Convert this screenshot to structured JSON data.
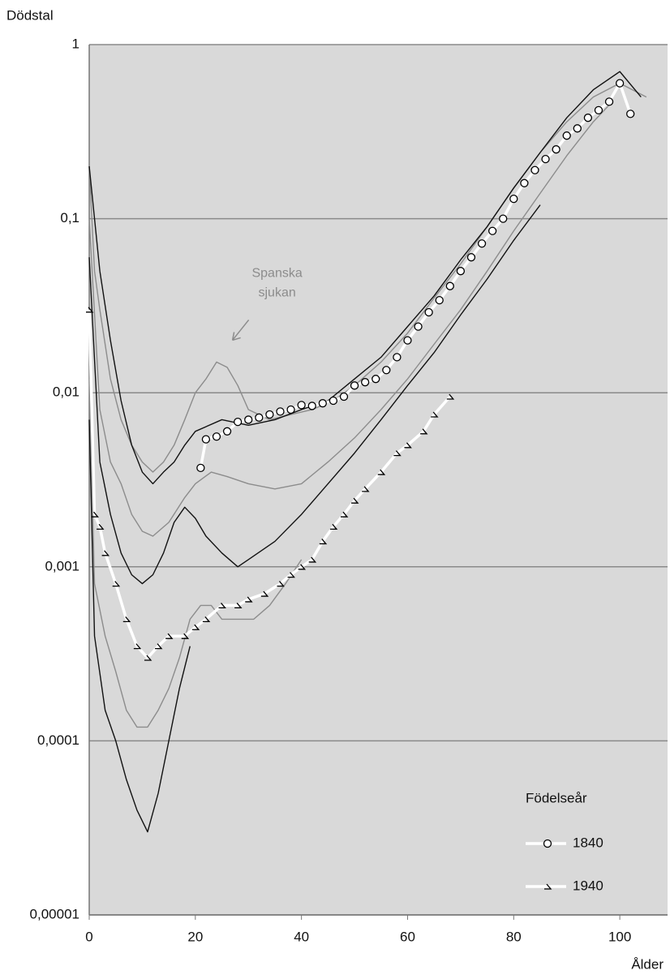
{
  "chart_data": {
    "type": "line",
    "y_label": "Dödstal",
    "x_label": "Ålder",
    "annotation": {
      "text": [
        "Spanska",
        "sjukan"
      ],
      "x": 27,
      "y": 0.018
    },
    "legend_title": "Födelseår",
    "legend": "lower right",
    "log_y": true,
    "grid": true,
    "background": "#d9d9d9",
    "xlim": [
      0,
      109
    ],
    "xticks": [
      0,
      20,
      40,
      60,
      80,
      100
    ],
    "ylim": [
      1e-05,
      1
    ],
    "yticks": [
      {
        "value": 1e-05,
        "label": "0,00001"
      },
      {
        "value": 0.0001,
        "label": "0,0001"
      },
      {
        "value": 0.001,
        "label": "0,001"
      },
      {
        "value": 0.01,
        "label": "0,01"
      },
      {
        "value": 0.1,
        "label": "0,1"
      },
      1
    ],
    "series": [
      {
        "color": "#8c8c8c",
        "x": [
          0,
          1,
          2,
          4,
          6,
          8,
          10,
          12,
          14,
          16,
          18,
          20,
          22,
          24,
          26,
          28,
          30,
          34,
          38,
          42,
          46,
          50,
          55,
          60,
          65,
          70,
          75,
          80,
          85,
          90,
          95,
          100,
          105
        ],
        "values": [
          0.2,
          0.05,
          0.03,
          0.012,
          0.007,
          0.005,
          0.004,
          0.0035,
          0.004,
          0.005,
          0.007,
          0.01,
          0.012,
          0.015,
          0.014,
          0.011,
          0.008,
          0.007,
          0.0075,
          0.008,
          0.009,
          0.011,
          0.015,
          0.022,
          0.035,
          0.055,
          0.09,
          0.15,
          0.24,
          0.36,
          0.5,
          0.6,
          0.5
        ]
      },
      {
        "color": "#111111",
        "x": [
          0,
          2,
          4,
          6,
          8,
          10,
          12,
          14,
          16,
          18,
          20,
          25,
          30,
          35,
          40,
          45,
          50,
          55,
          60,
          65,
          70,
          75,
          80,
          85,
          90,
          95,
          100,
          104
        ],
        "values": [
          0.2,
          0.05,
          0.02,
          0.009,
          0.005,
          0.0035,
          0.003,
          0.0035,
          0.004,
          0.005,
          0.006,
          0.007,
          0.0065,
          0.007,
          0.008,
          0.009,
          0.012,
          0.016,
          0.024,
          0.036,
          0.058,
          0.09,
          0.15,
          0.24,
          0.38,
          0.55,
          0.7,
          0.5
        ]
      },
      {
        "color": "#8c8c8c",
        "x": [
          0,
          2,
          4,
          6,
          8,
          10,
          12,
          15,
          18,
          20,
          23,
          26,
          30,
          35,
          40,
          45,
          50,
          55,
          60,
          65,
          70,
          75,
          80,
          85,
          90,
          95,
          98
        ],
        "values": [
          0.1,
          0.008,
          0.004,
          0.003,
          0.002,
          0.0016,
          0.0015,
          0.0018,
          0.0025,
          0.003,
          0.0035,
          0.0033,
          0.003,
          0.0028,
          0.003,
          0.004,
          0.0055,
          0.008,
          0.012,
          0.019,
          0.03,
          0.05,
          0.085,
          0.14,
          0.23,
          0.36,
          0.45
        ]
      },
      {
        "color": "#111111",
        "x": [
          0,
          2,
          4,
          6,
          8,
          10,
          12,
          14,
          16,
          18,
          20,
          22,
          25,
          28,
          30,
          35,
          40,
          45,
          50,
          55,
          60,
          65,
          70,
          75,
          80,
          85
        ],
        "values": [
          0.06,
          0.004,
          0.002,
          0.0012,
          0.0009,
          0.0008,
          0.0009,
          0.0012,
          0.0018,
          0.0022,
          0.0019,
          0.0015,
          0.0012,
          0.001,
          0.0011,
          0.0014,
          0.002,
          0.003,
          0.0045,
          0.007,
          0.011,
          0.017,
          0.028,
          0.045,
          0.075,
          0.12
        ]
      },
      {
        "color": "#8c8c8c",
        "x": [
          0,
          1,
          3,
          5,
          7,
          9,
          11,
          13,
          15,
          17,
          19,
          21,
          23,
          25,
          28,
          31,
          34,
          37,
          40
        ],
        "values": [
          0.012,
          0.0008,
          0.0004,
          0.00025,
          0.00015,
          0.00012,
          0.00012,
          0.00015,
          0.0002,
          0.0003,
          0.0005,
          0.0006,
          0.0006,
          0.0005,
          0.0005,
          0.0005,
          0.0006,
          0.0008,
          0.0011
        ]
      },
      {
        "color": "#111111",
        "x": [
          0,
          1,
          3,
          5,
          7,
          9,
          11,
          13,
          15,
          17,
          19
        ],
        "values": [
          0.007,
          0.0004,
          0.00015,
          0.0001,
          6e-05,
          4e-05,
          3e-05,
          5e-05,
          0.0001,
          0.0002,
          0.00035
        ]
      },
      {
        "name": "1840",
        "color": "#ffffff",
        "marker": "circle",
        "x": [
          21,
          22,
          24,
          26,
          28,
          30,
          32,
          34,
          36,
          38,
          40,
          42,
          44,
          46,
          48,
          50,
          52,
          54,
          56,
          58,
          60,
          62,
          64,
          66,
          68,
          70,
          72,
          74,
          76,
          78,
          80,
          82,
          84,
          86,
          88,
          90,
          92,
          94,
          96,
          98,
          100,
          102
        ],
        "values": [
          0.0037,
          0.0054,
          0.0056,
          0.006,
          0.0068,
          0.007,
          0.0072,
          0.0075,
          0.0078,
          0.008,
          0.0085,
          0.0084,
          0.0087,
          0.009,
          0.0095,
          0.011,
          0.0115,
          0.012,
          0.0135,
          0.016,
          0.02,
          0.024,
          0.029,
          0.034,
          0.041,
          0.05,
          0.06,
          0.072,
          0.085,
          0.1,
          0.13,
          0.16,
          0.19,
          0.22,
          0.25,
          0.3,
          0.33,
          0.38,
          0.42,
          0.47,
          0.6,
          0.4
        ]
      },
      {
        "name": "1940",
        "color": "#ffffff",
        "marker": "triangle",
        "x": [
          0,
          1,
          2,
          3,
          5,
          7,
          9,
          11,
          13,
          15,
          18,
          20,
          22,
          25,
          28,
          30,
          33,
          36,
          38,
          40,
          42,
          44,
          46,
          48,
          50,
          52,
          55,
          58,
          60,
          63,
          65,
          68
        ],
        "values": [
          0.03,
          0.002,
          0.0017,
          0.0012,
          0.0008,
          0.0005,
          0.00035,
          0.0003,
          0.00035,
          0.0004,
          0.0004,
          0.00045,
          0.0005,
          0.0006,
          0.0006,
          0.00065,
          0.0007,
          0.0008,
          0.0009,
          0.001,
          0.0011,
          0.0014,
          0.0017,
          0.002,
          0.0024,
          0.0028,
          0.0035,
          0.0045,
          0.005,
          0.006,
          0.0075,
          0.0095
        ]
      }
    ]
  }
}
